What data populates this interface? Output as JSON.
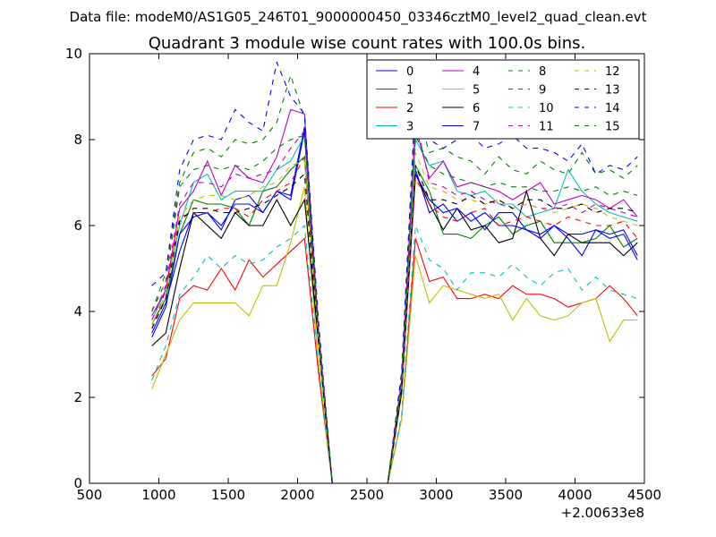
{
  "chart_data": {
    "type": "line",
    "suptitle": "Data file: modeM0/AS1G05_246T01_9000000450_03346cztM0_level2_quad_clean.evt",
    "title": "Quadrant 3 module wise count rates with 100.0s bins.",
    "xlabel": "",
    "ylabel": "",
    "x_offset_label": "+2.00633e8",
    "xlim": [
      500,
      4500
    ],
    "ylim": [
      0,
      10
    ],
    "xticks": [
      "500",
      "1000",
      "1500",
      "2000",
      "2500",
      "3000",
      "3500",
      "4000",
      "4500"
    ],
    "yticks": [
      "0",
      "2",
      "4",
      "6",
      "8",
      "10"
    ],
    "legend_location": "top-right",
    "x": [
      950,
      1050,
      1150,
      1250,
      1350,
      1450,
      1550,
      1650,
      1750,
      1850,
      1950,
      2050,
      2150,
      2250,
      2350,
      2450,
      2550,
      2650,
      2750,
      2850,
      2950,
      3050,
      3150,
      3250,
      3350,
      3450,
      3550,
      3650,
      3750,
      3850,
      3950,
      4050,
      4150,
      4250,
      4350,
      4450
    ],
    "series": [
      {
        "name": "0",
        "color": "#0000ff",
        "dash": "solid",
        "values": [
          3.5,
          4.2,
          5.4,
          6.3,
          6.3,
          6.0,
          6.5,
          6.5,
          6.3,
          6.8,
          6.7,
          8.3,
          3.5,
          0,
          0,
          0,
          0,
          0,
          2.3,
          7.3,
          6.3,
          6.5,
          6.1,
          6.3,
          5.9,
          6.3,
          6.3,
          5.9,
          5.8,
          6.0,
          5.7,
          5.3,
          5.9,
          5.8,
          5.9,
          5.3
        ]
      },
      {
        "name": "1",
        "color": "#008000",
        "dash": "solid",
        "values": [
          3.7,
          4.3,
          5.8,
          6.6,
          6.5,
          6.5,
          6.4,
          6.0,
          6.8,
          6.9,
          7.3,
          7.6,
          3.4,
          0,
          0,
          0,
          0,
          0,
          2.2,
          7.4,
          6.8,
          5.8,
          5.8,
          5.7,
          6.0,
          6.2,
          5.8,
          6.0,
          6.1,
          5.6,
          5.6,
          5.6,
          5.7,
          6.0,
          5.5,
          5.7
        ]
      },
      {
        "name": "2",
        "color": "#ff0000",
        "dash": "solid",
        "values": [
          2.5,
          2.9,
          4.3,
          4.6,
          4.5,
          5.0,
          4.5,
          5.2,
          4.8,
          5.1,
          5.4,
          5.7,
          2.6,
          0,
          0,
          0,
          0,
          0,
          1.5,
          5.7,
          4.7,
          4.8,
          4.3,
          4.3,
          4.4,
          4.3,
          4.6,
          4.4,
          4.4,
          4.3,
          4.1,
          4.2,
          4.3,
          4.6,
          4.3,
          3.9
        ]
      },
      {
        "name": "3",
        "color": "#00bfbf",
        "dash": "solid",
        "values": [
          3.8,
          4.5,
          6.0,
          7.0,
          7.2,
          6.6,
          6.8,
          6.8,
          6.8,
          7.3,
          7.5,
          8.1,
          3.6,
          0,
          0,
          0,
          0,
          0,
          2.4,
          8.0,
          7.4,
          7.5,
          6.8,
          6.7,
          6.8,
          6.5,
          6.5,
          6.2,
          6.3,
          6.4,
          7.3,
          6.8,
          6.5,
          6.3,
          6.2,
          6.1
        ]
      },
      {
        "name": "4",
        "color": "#bf00bf",
        "dash": "solid",
        "values": [
          3.9,
          4.5,
          6.4,
          6.8,
          7.5,
          6.7,
          7.4,
          7.1,
          7.0,
          7.6,
          8.7,
          8.6,
          3.6,
          0,
          0,
          0,
          0,
          0,
          2.4,
          8.3,
          7.1,
          7.5,
          6.9,
          7.0,
          6.9,
          6.8,
          6.6,
          6.8,
          7.0,
          6.5,
          6.6,
          6.7,
          6.6,
          6.4,
          6.6,
          6.2
        ]
      },
      {
        "name": "5",
        "color": "#bfbf00",
        "dash": "solid",
        "values": [
          2.2,
          3.0,
          3.8,
          4.2,
          4.2,
          4.2,
          4.2,
          3.9,
          4.6,
          4.6,
          5.6,
          6.9,
          2.8,
          0,
          0,
          0,
          0,
          0,
          1.5,
          5.3,
          4.2,
          4.6,
          4.5,
          4.4,
          4.3,
          4.4,
          3.8,
          4.3,
          3.9,
          3.8,
          3.9,
          4.2,
          4.3,
          3.3,
          3.8,
          3.8
        ]
      },
      {
        "name": "6",
        "color": "#000000",
        "dash": "solid",
        "values": [
          3.2,
          3.5,
          5.0,
          6.3,
          6.0,
          5.7,
          6.3,
          6.0,
          6.0,
          6.6,
          6.0,
          6.6,
          3.3,
          0,
          0,
          0,
          0,
          0,
          2.1,
          7.2,
          6.5,
          5.9,
          6.4,
          5.9,
          6.0,
          5.6,
          5.7,
          6.8,
          5.7,
          5.3,
          5.8,
          5.6,
          5.6,
          5.6,
          5.3,
          5.6
        ]
      },
      {
        "name": "7",
        "color": "#0000ff",
        "dash": "solid",
        "values": [
          3.4,
          4.1,
          5.8,
          6.2,
          6.3,
          5.9,
          6.6,
          6.7,
          6.3,
          6.8,
          6.6,
          8.2,
          3.5,
          0,
          0,
          0,
          0,
          0,
          2.2,
          7.2,
          6.6,
          6.3,
          6.4,
          6.1,
          6.3,
          6.0,
          6.0,
          5.9,
          5.7,
          6.0,
          5.8,
          5.8,
          5.9,
          5.7,
          5.8,
          5.2
        ]
      },
      {
        "name": "8",
        "color": "#008000",
        "dash": "dash",
        "values": [
          4.0,
          4.9,
          7.0,
          7.7,
          7.8,
          7.6,
          8.0,
          7.9,
          8.0,
          8.4,
          9.5,
          8.5,
          3.6,
          0,
          0,
          0,
          0,
          0,
          2.5,
          8.8,
          7.7,
          7.8,
          7.6,
          7.5,
          7.2,
          7.6,
          7.3,
          7.2,
          7.5,
          7.3,
          7.2,
          7.7,
          7.2,
          7.3,
          7.1,
          7.4
        ]
      },
      {
        "name": "9",
        "color": "#ff0000",
        "dash": "dash",
        "values": [
          3.6,
          4.5,
          6.2,
          6.3,
          6.3,
          6.4,
          6.4,
          6.2,
          6.6,
          6.8,
          7.0,
          7.6,
          3.4,
          0,
          0,
          0,
          0,
          0,
          2.2,
          7.1,
          6.5,
          6.2,
          6.1,
          6.3,
          6.4,
          6.0,
          6.1,
          6.2,
          6.1,
          6.0,
          6.2,
          6.1,
          6.0,
          6.0,
          6.1,
          5.7
        ]
      },
      {
        "name": "10",
        "color": "#00bfbf",
        "dash": "dash",
        "values": [
          2.4,
          3.2,
          4.4,
          4.8,
          5.3,
          5.0,
          5.3,
          5.1,
          5.2,
          5.5,
          5.7,
          6.0,
          2.8,
          0,
          0,
          0,
          0,
          0,
          1.6,
          6.0,
          5.2,
          5.0,
          4.5,
          4.9,
          4.9,
          4.8,
          5.1,
          4.8,
          4.6,
          4.9,
          5.0,
          4.5,
          4.8,
          4.5,
          4.4,
          4.3
        ]
      },
      {
        "name": "11",
        "color": "#bf00bf",
        "dash": "dash",
        "values": [
          3.8,
          4.6,
          6.5,
          7.0,
          7.0,
          6.9,
          7.2,
          7.1,
          7.2,
          7.3,
          7.8,
          8.2,
          3.5,
          0,
          0,
          0,
          0,
          0,
          2.4,
          8.5,
          7.0,
          6.9,
          6.7,
          6.8,
          6.6,
          6.5,
          6.4,
          6.5,
          6.4,
          6.4,
          6.5,
          6.3,
          6.5,
          6.4,
          6.3,
          6.2
        ]
      },
      {
        "name": "12",
        "color": "#bfbf00",
        "dash": "dash",
        "values": [
          3.7,
          4.4,
          6.2,
          6.6,
          6.7,
          6.7,
          6.6,
          6.7,
          6.9,
          7.0,
          7.4,
          7.5,
          3.4,
          0,
          0,
          0,
          0,
          0,
          2.3,
          7.7,
          6.9,
          6.8,
          6.6,
          6.6,
          6.5,
          6.6,
          6.4,
          6.5,
          6.4,
          6.3,
          6.4,
          6.5,
          6.4,
          6.2,
          6.1,
          6.0
        ]
      },
      {
        "name": "13",
        "color": "#000000",
        "dash": "dash",
        "values": [
          3.6,
          4.3,
          6.1,
          6.4,
          6.4,
          6.3,
          6.3,
          6.4,
          6.5,
          6.7,
          6.9,
          7.2,
          3.3,
          0,
          0,
          0,
          0,
          0,
          2.2,
          7.4,
          6.6,
          6.6,
          6.5,
          6.7,
          6.5,
          6.6,
          6.4,
          6.6,
          6.6,
          6.4,
          6.4,
          6.5,
          6.3,
          6.4,
          6.4,
          6.3
        ]
      },
      {
        "name": "14",
        "color": "#0000ff",
        "dash": "dash",
        "values": [
          4.6,
          4.9,
          7.3,
          8.0,
          8.1,
          8.0,
          8.7,
          8.4,
          8.2,
          9.8,
          9.0,
          8.6,
          3.8,
          0,
          0,
          0,
          0,
          0,
          2.6,
          9.0,
          8.0,
          7.8,
          8.0,
          8.1,
          7.8,
          7.9,
          8.1,
          7.8,
          7.8,
          7.7,
          7.5,
          7.9,
          7.2,
          7.4,
          7.3,
          7.6
        ]
      },
      {
        "name": "15",
        "color": "#008000",
        "dash": "dash",
        "values": [
          4.0,
          4.7,
          6.9,
          7.3,
          7.4,
          7.3,
          7.4,
          7.3,
          7.5,
          7.8,
          8.0,
          8.1,
          3.6,
          0,
          0,
          0,
          0,
          0,
          2.4,
          8.1,
          7.4,
          7.2,
          7.1,
          7.0,
          6.9,
          7.0,
          6.9,
          6.9,
          6.8,
          6.8,
          6.9,
          6.8,
          6.9,
          6.7,
          6.8,
          6.7
        ]
      }
    ]
  }
}
